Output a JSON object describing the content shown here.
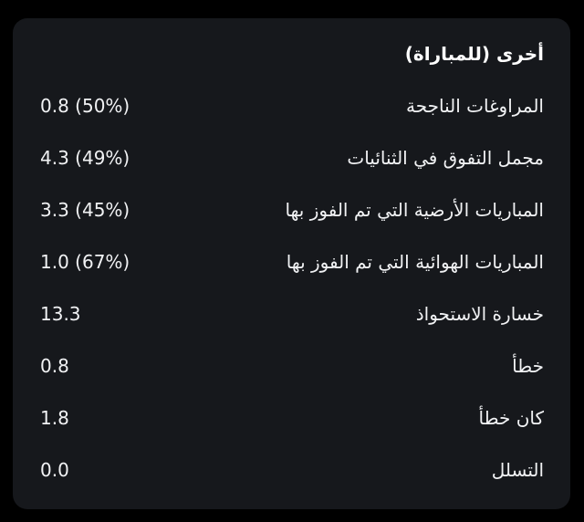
{
  "page": {
    "background_color": "#000000"
  },
  "card": {
    "background_color": "#16181c",
    "title_color": "#ffffff",
    "text_color": "#f1f2f4",
    "title": "أخرى (للمباراة)",
    "rows": [
      {
        "label": "المراوغات الناجحة",
        "value": "0.8 (50%)"
      },
      {
        "label": "مجمل التفوق في الثنائيات",
        "value": "4.3 (49%)"
      },
      {
        "label": "المباريات الأرضية التي تم الفوز بها",
        "value": "3.3 (45%)"
      },
      {
        "label": "المباريات الهوائية التي تم الفوز بها",
        "value": "1.0 (67%)"
      },
      {
        "label": "خسارة الاستحواذ",
        "value": "13.3"
      },
      {
        "label": "خطأ",
        "value": "0.8"
      },
      {
        "label": "كان خطأ",
        "value": "1.8"
      },
      {
        "label": "التسلل",
        "value": "0.0"
      }
    ]
  }
}
